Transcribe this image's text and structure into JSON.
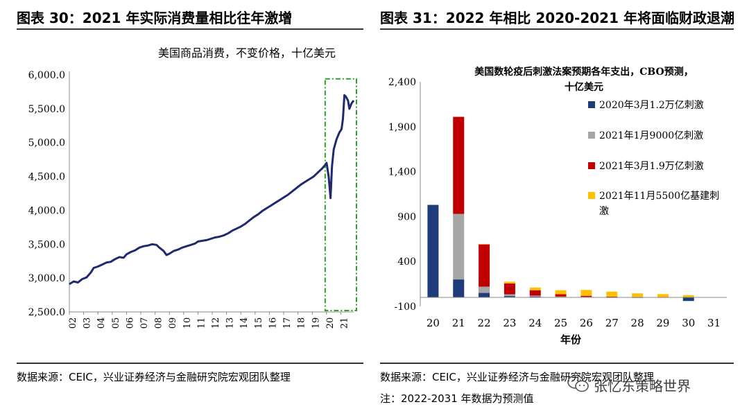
{
  "left_figure": {
    "title": "图表 30：2021 年实际消费量相比往年激增",
    "subtitle": "美国商品消费，不变价格，十亿美元"
  },
  "right_figure": {
    "title": "图表 31：2022 年相比 2020-2021 年将面临财政退潮"
  },
  "footer": {
    "left_source": "数据来源：CEIC，兴业证券经济与金融研究院宏观团队整理",
    "right_source": "数据来源：CEIC，兴业证券经济与金融研究院宏观团队整理",
    "right_note": "注：2022-2031 年数据为预测值",
    "watermark": "张忆东策略世界"
  },
  "chart_data": [
    {
      "type": "line",
      "title": "美国商品消费，不变价格，十亿美元",
      "xlabel": "",
      "ylabel": "",
      "x_tick_labels": [
        "02",
        "03",
        "04",
        "05",
        "06",
        "07",
        "08",
        "09",
        "10",
        "11",
        "12",
        "13",
        "14",
        "15",
        "16",
        "17",
        "18",
        "19",
        "20",
        "21"
      ],
      "y_tick_labels": [
        "2,500.0",
        "3,000.0",
        "3,500.0",
        "4,000.0",
        "4,500.0",
        "5,000.0",
        "5,500.0",
        "6,000.0"
      ],
      "ylim": [
        2500,
        6000
      ],
      "xlim": [
        2002,
        2021.9
      ],
      "color": "#1f2a6e",
      "highlight_box": {
        "x_from": 2020.0,
        "x_to": 2021.9,
        "y_from": 2500,
        "y_to": 5900,
        "style": "dash-dot",
        "color": "#2ca02c"
      },
      "series": [
        {
          "name": "美国商品消费",
          "points": [
            [
              2002.0,
              2910
            ],
            [
              2002.3,
              2950
            ],
            [
              2002.6,
              2935
            ],
            [
              2002.9,
              2985
            ],
            [
              2003.2,
              3010
            ],
            [
              2003.5,
              3080
            ],
            [
              2003.7,
              3150
            ],
            [
              2004.0,
              3170
            ],
            [
              2004.3,
              3200
            ],
            [
              2004.6,
              3230
            ],
            [
              2004.9,
              3240
            ],
            [
              2005.2,
              3280
            ],
            [
              2005.5,
              3310
            ],
            [
              2005.8,
              3300
            ],
            [
              2006.0,
              3350
            ],
            [
              2006.3,
              3385
            ],
            [
              2006.6,
              3410
            ],
            [
              2006.9,
              3450
            ],
            [
              2007.2,
              3470
            ],
            [
              2007.5,
              3480
            ],
            [
              2007.8,
              3500
            ],
            [
              2008.1,
              3490
            ],
            [
              2008.3,
              3450
            ],
            [
              2008.6,
              3400
            ],
            [
              2008.8,
              3340
            ],
            [
              2009.0,
              3360
            ],
            [
              2009.3,
              3400
            ],
            [
              2009.6,
              3420
            ],
            [
              2009.9,
              3450
            ],
            [
              2010.2,
              3470
            ],
            [
              2010.5,
              3490
            ],
            [
              2010.8,
              3510
            ],
            [
              2011.0,
              3540
            ],
            [
              2011.3,
              3550
            ],
            [
              2011.6,
              3560
            ],
            [
              2011.9,
              3580
            ],
            [
              2012.2,
              3600
            ],
            [
              2012.5,
              3610
            ],
            [
              2012.8,
              3630
            ],
            [
              2013.1,
              3660
            ],
            [
              2013.4,
              3700
            ],
            [
              2013.7,
              3730
            ],
            [
              2014.0,
              3760
            ],
            [
              2014.3,
              3800
            ],
            [
              2014.6,
              3850
            ],
            [
              2014.9,
              3900
            ],
            [
              2015.2,
              3940
            ],
            [
              2015.5,
              3990
            ],
            [
              2015.8,
              4030
            ],
            [
              2016.1,
              4070
            ],
            [
              2016.4,
              4110
            ],
            [
              2016.7,
              4150
            ],
            [
              2017.0,
              4190
            ],
            [
              2017.3,
              4230
            ],
            [
              2017.6,
              4280
            ],
            [
              2017.9,
              4330
            ],
            [
              2018.2,
              4380
            ],
            [
              2018.5,
              4420
            ],
            [
              2018.8,
              4460
            ],
            [
              2019.1,
              4500
            ],
            [
              2019.4,
              4560
            ],
            [
              2019.7,
              4620
            ],
            [
              2019.95,
              4680
            ],
            [
              2020.0,
              4700
            ],
            [
              2020.15,
              4500
            ],
            [
              2020.28,
              4180
            ],
            [
              2020.38,
              4650
            ],
            [
              2020.5,
              4900
            ],
            [
              2020.7,
              5050
            ],
            [
              2020.9,
              5150
            ],
            [
              2021.05,
              5200
            ],
            [
              2021.15,
              5350
            ],
            [
              2021.25,
              5700
            ],
            [
              2021.35,
              5680
            ],
            [
              2021.5,
              5620
            ],
            [
              2021.6,
              5500
            ],
            [
              2021.75,
              5580
            ],
            [
              2021.9,
              5620
            ]
          ]
        }
      ]
    },
    {
      "type": "bar",
      "stacked": true,
      "title": "美国数轮疫后刺激法案预期各年支出，CBO预测，十亿美元",
      "xlabel": "年份",
      "ylabel": "",
      "categories": [
        "20",
        "21",
        "22",
        "23",
        "24",
        "25",
        "26",
        "27",
        "28",
        "29",
        "30",
        "31"
      ],
      "y_tick_labels": [
        "-100",
        "400",
        "900",
        "1,400",
        "1,900",
        "2,400"
      ],
      "ylim": [
        -100,
        2400
      ],
      "series": [
        {
          "name": "2020年3月1.2万亿刺激",
          "color": "#1f3c7a",
          "values": [
            1030,
            200,
            50,
            15,
            10,
            5,
            3,
            2,
            1,
            0,
            -40,
            0
          ]
        },
        {
          "name": "2021年1月9000亿刺激",
          "color": "#a6a6a6",
          "values": [
            0,
            730,
            70,
            20,
            10,
            5,
            3,
            2,
            1,
            0,
            0,
            0
          ]
        },
        {
          "name": "2021年3月1.9万亿刺激",
          "color": "#c00000",
          "values": [
            0,
            1080,
            470,
            120,
            60,
            25,
            12,
            5,
            3,
            2,
            0,
            0
          ]
        },
        {
          "name": "2021年11月5500亿基建刺激",
          "color": "#ffc000",
          "values": [
            0,
            0,
            5,
            20,
            30,
            45,
            65,
            55,
            40,
            35,
            25,
            0
          ]
        }
      ]
    }
  ]
}
